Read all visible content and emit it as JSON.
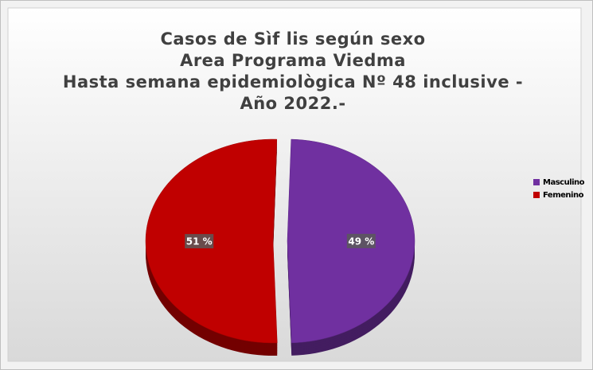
{
  "chart_data": {
    "type": "pie",
    "title": [
      "Casos de Sìf lis según sexo",
      "Area Programa Viedma",
      "Hasta semana epidemiològica Nº 48 inclusive -",
      "Año 2022.-"
    ],
    "categories": [
      "Masculino",
      "Femenino"
    ],
    "values": [
      49,
      51
    ],
    "value_labels": [
      "49 %",
      "51 %"
    ],
    "colors": [
      "#7030a0",
      "#c00000"
    ],
    "legend": "right"
  }
}
